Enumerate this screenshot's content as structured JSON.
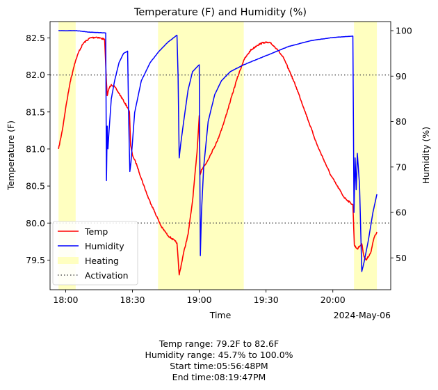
{
  "chart_data": {
    "type": "line",
    "title": "Temperature (F) and Humidity (%)",
    "xlabel": "Time",
    "x_offset_label": "2024-May-06",
    "ylabel_left": "Temperature (F)",
    "ylabel_right": "Humidity (%)",
    "xlim": [
      "17:53",
      "20:26"
    ],
    "ylim_left": [
      79.1,
      82.72
    ],
    "ylim_right": [
      43.0,
      102.0
    ],
    "x_ticks": [
      "18:00",
      "18:30",
      "19:00",
      "19:30",
      "20:00"
    ],
    "y_ticks_left": [
      79.5,
      80.0,
      80.5,
      81.0,
      81.5,
      82.0,
      82.5
    ],
    "y_tick_labels_left": [
      "79.5",
      "80.0",
      "80.5",
      "81.0",
      "81.5",
      "82.0",
      "82.5"
    ],
    "y_ticks_right": [
      50,
      60,
      70,
      80,
      90,
      100
    ],
    "y_tick_labels_right": [
      "50",
      "60",
      "70",
      "80",
      "90",
      "100"
    ],
    "grid": false,
    "legend_position": "lower-left",
    "legend": [
      "Temp",
      "Humidity",
      "Heating",
      "Activation"
    ],
    "heating_periods": [
      [
        "17:56:48",
        "18:04:30"
      ],
      [
        "18:41:30",
        "19:20:00"
      ],
      [
        "20:09:30",
        "20:19:47"
      ]
    ],
    "activation_lines": [
      {
        "axis": "left",
        "value": 82.0
      },
      {
        "axis": "left",
        "value": 80.0
      }
    ],
    "series": [
      {
        "name": "Temp",
        "color": "#ff0000",
        "axis": "left",
        "points": [
          [
            "17:56:48",
            81.0
          ],
          [
            "17:58:30",
            81.25
          ],
          [
            "18:00:00",
            81.55
          ],
          [
            "18:02:00",
            81.9
          ],
          [
            "18:04:00",
            82.15
          ],
          [
            "18:06:00",
            82.32
          ],
          [
            "18:08:00",
            82.43
          ],
          [
            "18:11:00",
            82.5
          ],
          [
            "18:14:00",
            82.51
          ],
          [
            "18:17:30",
            82.48
          ],
          [
            "18:18:20",
            81.9
          ],
          [
            "18:18:40",
            81.72
          ],
          [
            "18:19:30",
            81.82
          ],
          [
            "18:20:30",
            81.87
          ],
          [
            "18:22:00",
            81.84
          ],
          [
            "18:24:00",
            81.75
          ],
          [
            "18:26:00",
            81.65
          ],
          [
            "18:28:00",
            81.55
          ],
          [
            "18:28:40",
            81.5
          ],
          [
            "18:29:10",
            81.05
          ],
          [
            "18:30:00",
            80.92
          ],
          [
            "18:32:00",
            80.78
          ],
          [
            "18:34:00",
            80.6
          ],
          [
            "18:37:00",
            80.35
          ],
          [
            "18:40:00",
            80.15
          ],
          [
            "18:43:00",
            79.95
          ],
          [
            "18:46:00",
            79.83
          ],
          [
            "18:49:00",
            79.76
          ],
          [
            "18:50:00",
            79.73
          ],
          [
            "18:51:00",
            79.3
          ],
          [
            "18:53:00",
            79.6
          ],
          [
            "18:55:00",
            79.85
          ],
          [
            "18:57:00",
            80.3
          ],
          [
            "18:59:00",
            80.95
          ],
          [
            "19:00:00",
            81.45
          ],
          [
            "19:00:20",
            80.65
          ],
          [
            "19:01:00",
            80.72
          ],
          [
            "19:03:00",
            80.8
          ],
          [
            "19:05:00",
            80.92
          ],
          [
            "19:08:00",
            81.1
          ],
          [
            "19:11:00",
            81.35
          ],
          [
            "19:14:00",
            81.65
          ],
          [
            "19:17:00",
            81.95
          ],
          [
            "19:20:00",
            82.2
          ],
          [
            "19:23:00",
            82.33
          ],
          [
            "19:26:00",
            82.4
          ],
          [
            "19:29:00",
            82.44
          ],
          [
            "19:32:00",
            82.43
          ],
          [
            "19:35:00",
            82.35
          ],
          [
            "19:38:00",
            82.22
          ],
          [
            "19:41:00",
            82.02
          ],
          [
            "19:44:00",
            81.8
          ],
          [
            "19:47:00",
            81.55
          ],
          [
            "19:50:00",
            81.3
          ],
          [
            "19:53:00",
            81.05
          ],
          [
            "19:56:00",
            80.85
          ],
          [
            "19:59:00",
            80.65
          ],
          [
            "20:02:00",
            80.5
          ],
          [
            "20:05:00",
            80.35
          ],
          [
            "20:08:00",
            80.27
          ],
          [
            "20:09:00",
            80.25
          ],
          [
            "20:09:40",
            79.7
          ],
          [
            "20:11:00",
            79.65
          ],
          [
            "20:13:00",
            79.72
          ],
          [
            "20:14:00",
            79.55
          ],
          [
            "20:15:00",
            79.5
          ],
          [
            "20:17:00",
            79.6
          ],
          [
            "20:18:30",
            79.8
          ],
          [
            "20:19:47",
            79.88
          ]
        ]
      },
      {
        "name": "Humidity",
        "color": "#0000ff",
        "axis": "right",
        "points": [
          [
            "17:56:48",
            100.0
          ],
          [
            "18:05:00",
            100.0
          ],
          [
            "18:10:00",
            99.7
          ],
          [
            "18:18:00",
            99.5
          ],
          [
            "18:18:20",
            67.0
          ],
          [
            "18:18:40",
            79.0
          ],
          [
            "18:19:00",
            74.0
          ],
          [
            "18:19:30",
            78.0
          ],
          [
            "18:20:30",
            85.0
          ],
          [
            "18:22:00",
            89.0
          ],
          [
            "18:24:00",
            93.0
          ],
          [
            "18:26:00",
            95.0
          ],
          [
            "18:27:50",
            95.5
          ],
          [
            "18:28:20",
            80.0
          ],
          [
            "18:28:50",
            69.0
          ],
          [
            "18:29:20",
            71.0
          ],
          [
            "18:31:00",
            82.0
          ],
          [
            "18:34:00",
            89.0
          ],
          [
            "18:38:00",
            93.0
          ],
          [
            "18:42:00",
            95.5
          ],
          [
            "18:46:00",
            97.5
          ],
          [
            "18:50:00",
            99.0
          ],
          [
            "18:50:30",
            90.0
          ],
          [
            "18:51:00",
            72.0
          ],
          [
            "18:51:40",
            75.0
          ],
          [
            "18:53:00",
            80.0
          ],
          [
            "18:55:00",
            87.0
          ],
          [
            "18:57:00",
            91.0
          ],
          [
            "19:00:00",
            92.5
          ],
          [
            "19:00:30",
            50.5
          ],
          [
            "19:01:00",
            60.0
          ],
          [
            "19:02:00",
            70.0
          ],
          [
            "19:04:00",
            80.0
          ],
          [
            "19:07:00",
            86.0
          ],
          [
            "19:10:00",
            89.0
          ],
          [
            "19:14:00",
            91.0
          ],
          [
            "19:20:00",
            92.5
          ],
          [
            "19:30:00",
            94.5
          ],
          [
            "19:40:00",
            96.5
          ],
          [
            "19:50:00",
            97.8
          ],
          [
            "20:00:00",
            98.5
          ],
          [
            "20:09:00",
            98.8
          ],
          [
            "20:09:30",
            60.0
          ],
          [
            "20:10:00",
            72.0
          ],
          [
            "20:10:30",
            65.0
          ],
          [
            "20:11:00",
            73.0
          ],
          [
            "20:12:00",
            66.0
          ],
          [
            "20:13:00",
            47.0
          ],
          [
            "20:14:00",
            49.0
          ],
          [
            "20:16:00",
            54.0
          ],
          [
            "20:18:00",
            60.0
          ],
          [
            "20:19:47",
            64.0
          ]
        ]
      }
    ],
    "annotations": [
      "Temp range: 79.2F to 82.6F",
      "Humidity range: 45.7% to 100.0%",
      "Start time:05:56:48PM",
      "End time:08:19:47PM"
    ]
  }
}
